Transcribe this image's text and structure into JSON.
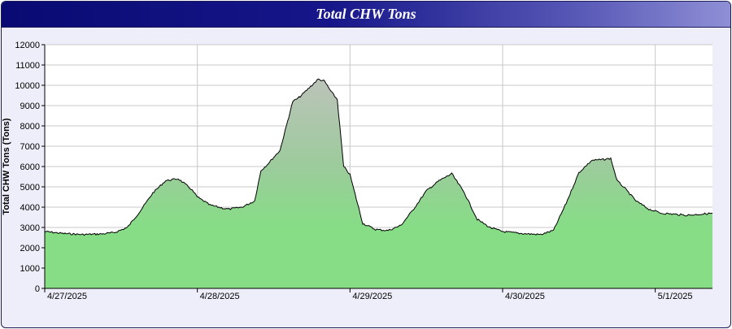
{
  "chart_data": {
    "type": "area",
    "title": "Total CHW Tons",
    "ylabel": "Total CHW Tons (Tons)",
    "xlabel": "",
    "ylim": [
      0,
      12000
    ],
    "y_ticks": [
      "0",
      "1000",
      "2000",
      "3000",
      "4000",
      "5000",
      "6000",
      "7000",
      "8000",
      "9000",
      "10000",
      "11000",
      "12000"
    ],
    "x_ticks": [
      "4/27/2025",
      "4/28/2025",
      "4/29/2025",
      "4/30/2025",
      "5/1/2025"
    ],
    "xlim": [
      "2025-04-27 00:00",
      "2025-05-01 09:00"
    ],
    "grid": true,
    "legend": "none",
    "series": [
      {
        "x": [
          "2025-04-27 00:00",
          "2025-04-27 03:00",
          "2025-04-27 06:00",
          "2025-04-27 09:00",
          "2025-04-27 11:00",
          "2025-04-27 13:00",
          "2025-04-27 15:00",
          "2025-04-27 17:00",
          "2025-04-27 19:00",
          "2025-04-27 21:00",
          "2025-04-27 23:00",
          "2025-04-28 00:00",
          "2025-04-28 02:00",
          "2025-04-28 04:00",
          "2025-04-28 05:00",
          "2025-04-28 06:00",
          "2025-04-28 07:00",
          "2025-04-28 09:00",
          "2025-04-28 10:00",
          "2025-04-28 11:00",
          "2025-04-28 13:00",
          "2025-04-28 15:00",
          "2025-04-28 16:00",
          "2025-04-28 17:00",
          "2025-04-28 18:00",
          "2025-04-28 19:00",
          "2025-04-28 20:00",
          "2025-04-28 21:00",
          "2025-04-28 22:00",
          "2025-04-28 23:00",
          "2025-04-29 00:00",
          "2025-04-29 02:00",
          "2025-04-29 04:00",
          "2025-04-29 06:00",
          "2025-04-29 08:00",
          "2025-04-29 10:00",
          "2025-04-29 12:00",
          "2025-04-29 14:00",
          "2025-04-29 16:00",
          "2025-04-29 18:00",
          "2025-04-29 20:00",
          "2025-04-29 22:00",
          "2025-04-30 00:00",
          "2025-04-30 03:00",
          "2025-04-30 06:00",
          "2025-04-30 08:00",
          "2025-04-30 10:00",
          "2025-04-30 12:00",
          "2025-04-30 14:00",
          "2025-04-30 16:00",
          "2025-04-30 17:00",
          "2025-04-30 18:00",
          "2025-04-30 19:00",
          "2025-04-30 21:00",
          "2025-04-30 23:00",
          "2025-05-01 01:00",
          "2025-05-01 03:00",
          "2025-05-01 05:00",
          "2025-05-01 07:00",
          "2025-05-01 09:00"
        ],
        "values": [
          2800,
          2700,
          2650,
          2680,
          2750,
          3000,
          3800,
          4700,
          5300,
          5400,
          4900,
          4500,
          4100,
          3950,
          3900,
          3950,
          4000,
          4300,
          5800,
          6100,
          6800,
          9200,
          9400,
          9700,
          10000,
          10300,
          10200,
          9700,
          9300,
          6000,
          5600,
          3200,
          2900,
          2850,
          3100,
          3900,
          4800,
          5300,
          5650,
          4700,
          3400,
          3000,
          2800,
          2700,
          2650,
          2850,
          4200,
          5700,
          6300,
          6350,
          6400,
          5300,
          5000,
          4300,
          3900,
          3700,
          3650,
          3600,
          3650,
          3700
        ]
      }
    ]
  }
}
